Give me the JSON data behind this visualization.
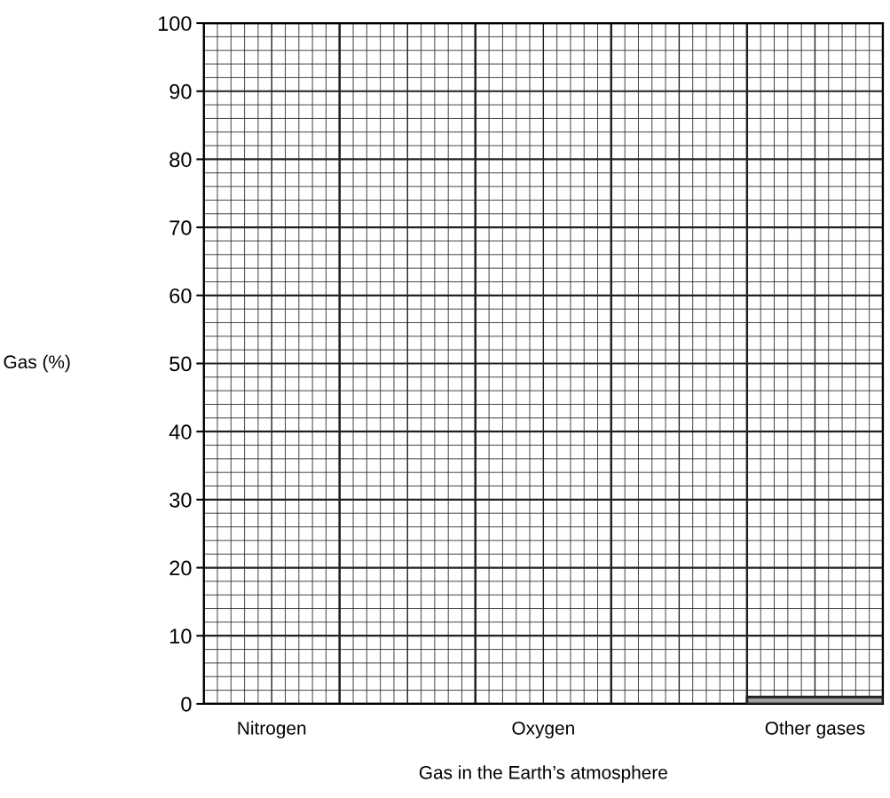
{
  "chart_data": {
    "type": "bar",
    "xlabel": "Gas in the Earth’s atmosphere",
    "ylabel": "Gas (%)",
    "categories": [
      "Nitrogen",
      null,
      "Oxygen",
      null,
      "Other gases"
    ],
    "values": [
      null,
      null,
      null,
      null,
      1
    ],
    "color": "#a0a0a0",
    "ylim": [
      0,
      100
    ],
    "yticks": [
      0,
      10,
      20,
      30,
      40,
      50,
      60,
      70,
      80,
      90,
      100
    ],
    "grid": true
  }
}
